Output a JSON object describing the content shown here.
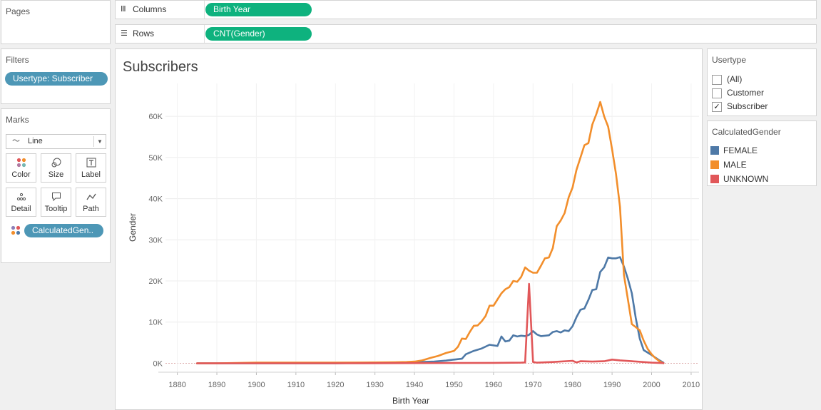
{
  "pages": {
    "title": "Pages"
  },
  "shelves": {
    "columns": {
      "label": "Columns",
      "pill": "Birth Year"
    },
    "rows": {
      "label": "Rows",
      "pill": "CNT(Gender)"
    }
  },
  "filters": {
    "title": "Filters",
    "pill": "Usertype: Subscriber"
  },
  "marks": {
    "title": "Marks",
    "mark_type": "Line",
    "buttons": {
      "color": "Color",
      "size": "Size",
      "label": "Label",
      "detail": "Detail",
      "tooltip": "Tooltip",
      "path": "Path"
    },
    "field_pill": "CalculatedGen.."
  },
  "usertype_filter": {
    "title": "Usertype",
    "options": [
      {
        "label": "(All)",
        "checked": false
      },
      {
        "label": "Customer",
        "checked": false
      },
      {
        "label": "Subscriber",
        "checked": true
      }
    ]
  },
  "gender_legend": {
    "title": "CalculatedGender",
    "items": [
      {
        "label": "FEMALE",
        "color": "#4e79a7"
      },
      {
        "label": "MALE",
        "color": "#f28e2b"
      },
      {
        "label": "UNKNOWN",
        "color": "#e15759"
      }
    ]
  },
  "chart_data": {
    "type": "line",
    "title": "Subscribers",
    "xlabel": "Birth Year",
    "ylabel": "Gender",
    "xlim": [
      1877,
      2012
    ],
    "ylim": [
      -2000,
      68000
    ],
    "x_ticks": [
      1880,
      1890,
      1900,
      1910,
      1920,
      1930,
      1940,
      1950,
      1960,
      1970,
      1980,
      1990,
      2000,
      2010
    ],
    "y_ticks": [
      0,
      10000,
      20000,
      30000,
      40000,
      50000,
      60000
    ],
    "y_tick_labels": [
      "0K",
      "10K",
      "20K",
      "30K",
      "40K",
      "50K",
      "60K"
    ],
    "series": [
      {
        "name": "FEMALE",
        "color": "#4e79a7",
        "x": [
          1885,
          1900,
          1920,
          1930,
          1935,
          1940,
          1945,
          1948,
          1950,
          1952,
          1953,
          1955,
          1957,
          1959,
          1961,
          1962,
          1963,
          1964,
          1965,
          1966,
          1967,
          1968,
          1969,
          1970,
          1971,
          1972,
          1974,
          1975,
          1976,
          1977,
          1978,
          1979,
          1980,
          1981,
          1982,
          1983,
          1984,
          1985,
          1986,
          1987,
          1988,
          1989,
          1990,
          1991,
          1992,
          1993,
          1994,
          1995,
          1996,
          1997,
          1998,
          2000,
          2002,
          2003
        ],
        "y": [
          0,
          0,
          0,
          150,
          200,
          250,
          400,
          650,
          900,
          1100,
          2200,
          3000,
          3600,
          4500,
          4200,
          6500,
          5300,
          5500,
          6800,
          6500,
          6700,
          6600,
          6900,
          7800,
          7000,
          6600,
          6800,
          7600,
          7800,
          7500,
          8000,
          7800,
          9000,
          11200,
          13000,
          13300,
          15400,
          17800,
          18000,
          22200,
          23300,
          25700,
          25500,
          25500,
          25800,
          23500,
          20500,
          17000,
          11000,
          6000,
          3200,
          2000,
          700,
          150
        ]
      },
      {
        "name": "MALE",
        "color": "#f28e2b",
        "x": [
          1885,
          1890,
          1900,
          1920,
          1930,
          1935,
          1938,
          1940,
          1942,
          1944,
          1946,
          1948,
          1950,
          1951,
          1952,
          1953,
          1954,
          1955,
          1956,
          1957,
          1958,
          1959,
          1960,
          1961,
          1962,
          1963,
          1964,
          1965,
          1966,
          1967,
          1968,
          1969,
          1970,
          1971,
          1972,
          1973,
          1974,
          1975,
          1976,
          1977,
          1978,
          1979,
          1980,
          1981,
          1982,
          1983,
          1984,
          1985,
          1986,
          1987,
          1988,
          1989,
          1990,
          1991,
          1992,
          1993,
          1994,
          1995,
          1996,
          1997,
          1998,
          1999,
          2000,
          2001,
          2002,
          2003
        ],
        "y": [
          0,
          0,
          150,
          150,
          200,
          250,
          300,
          400,
          700,
          1300,
          1800,
          2500,
          3000,
          4000,
          6000,
          5900,
          7600,
          9100,
          9200,
          10200,
          11500,
          14000,
          14000,
          15500,
          17000,
          18000,
          18500,
          20000,
          19800,
          21000,
          23300,
          22500,
          22000,
          22000,
          23700,
          25500,
          25700,
          28000,
          33300,
          34700,
          36500,
          40300,
          42700,
          47000,
          50000,
          53000,
          53500,
          58000,
          60500,
          63500,
          60000,
          57500,
          52000,
          46000,
          38000,
          21500,
          15500,
          9500,
          8800,
          8000,
          5500,
          3500,
          2200,
          1200,
          500,
          0
        ]
      },
      {
        "name": "UNKNOWN",
        "color": "#e15759",
        "x": [
          1885,
          1900,
          1920,
          1940,
          1960,
          1967,
          1968,
          1969,
          1970,
          1971,
          1975,
          1980,
          1981,
          1982,
          1985,
          1988,
          1990,
          1992,
          1995,
          2000,
          2003
        ],
        "y": [
          0,
          0,
          0,
          50,
          100,
          150,
          200,
          19300,
          300,
          150,
          300,
          600,
          200,
          500,
          400,
          500,
          900,
          700,
          500,
          150,
          50
        ]
      }
    ]
  }
}
